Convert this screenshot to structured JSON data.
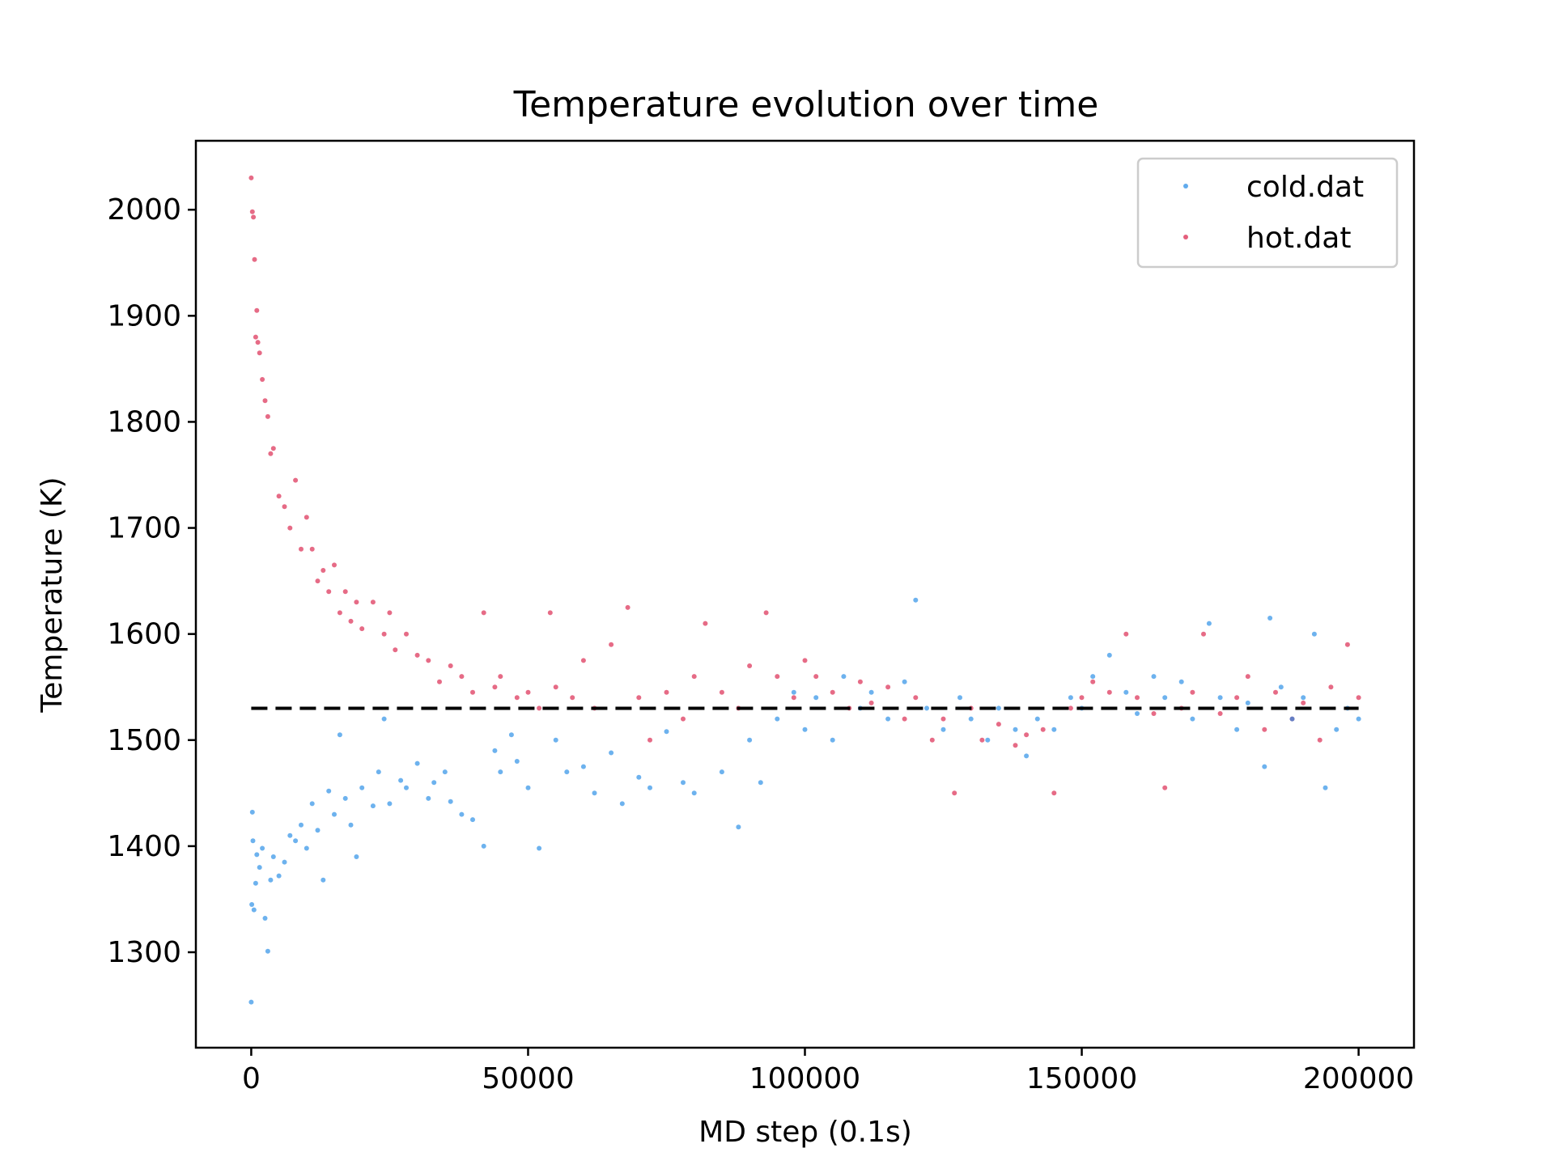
{
  "chart_data": {
    "type": "scatter",
    "title": "Temperature evolution over time",
    "xlabel": "MD step (0.1s)",
    "ylabel": "Temperature (K)",
    "xlim": [
      -10000,
      210000
    ],
    "ylim": [
      1210,
      2065
    ],
    "x_ticks": [
      0,
      50000,
      100000,
      150000,
      200000
    ],
    "y_ticks": [
      1300,
      1400,
      1500,
      1600,
      1700,
      1800,
      1900,
      2000
    ],
    "grid": false,
    "legend_position": "top-right",
    "reference_line": {
      "y": 1530,
      "x_range": [
        0,
        200000
      ],
      "style": "dashed",
      "color": "#000000"
    },
    "series": [
      {
        "name": "cold.dat",
        "color": "#1e88e5",
        "points": [
          [
            0,
            1253
          ],
          [
            100,
            1345
          ],
          [
            200,
            1432
          ],
          [
            300,
            1405
          ],
          [
            500,
            1340
          ],
          [
            800,
            1365
          ],
          [
            1000,
            1392
          ],
          [
            1500,
            1380
          ],
          [
            2000,
            1398
          ],
          [
            2500,
            1332
          ],
          [
            3000,
            1301
          ],
          [
            3500,
            1368
          ],
          [
            4000,
            1390
          ],
          [
            5000,
            1372
          ],
          [
            6000,
            1385
          ],
          [
            7000,
            1410
          ],
          [
            8000,
            1405
          ],
          [
            9000,
            1420
          ],
          [
            10000,
            1398
          ],
          [
            11000,
            1440
          ],
          [
            12000,
            1415
          ],
          [
            13000,
            1368
          ],
          [
            14000,
            1452
          ],
          [
            15000,
            1430
          ],
          [
            16000,
            1505
          ],
          [
            17000,
            1445
          ],
          [
            18000,
            1420
          ],
          [
            19000,
            1390
          ],
          [
            20000,
            1455
          ],
          [
            22000,
            1438
          ],
          [
            23000,
            1470
          ],
          [
            24000,
            1520
          ],
          [
            25000,
            1440
          ],
          [
            27000,
            1462
          ],
          [
            28000,
            1455
          ],
          [
            30000,
            1478
          ],
          [
            32000,
            1445
          ],
          [
            33000,
            1460
          ],
          [
            35000,
            1470
          ],
          [
            36000,
            1442
          ],
          [
            38000,
            1430
          ],
          [
            40000,
            1425
          ],
          [
            42000,
            1400
          ],
          [
            44000,
            1490
          ],
          [
            45000,
            1470
          ],
          [
            47000,
            1505
          ],
          [
            48000,
            1480
          ],
          [
            50000,
            1455
          ],
          [
            52000,
            1398
          ],
          [
            55000,
            1500
          ],
          [
            57000,
            1470
          ],
          [
            60000,
            1475
          ],
          [
            62000,
            1450
          ],
          [
            65000,
            1488
          ],
          [
            67000,
            1440
          ],
          [
            70000,
            1465
          ],
          [
            72000,
            1455
          ],
          [
            75000,
            1508
          ],
          [
            78000,
            1460
          ],
          [
            80000,
            1450
          ],
          [
            85000,
            1470
          ],
          [
            88000,
            1418
          ],
          [
            90000,
            1500
          ],
          [
            92000,
            1460
          ],
          [
            95000,
            1520
          ],
          [
            98000,
            1545
          ],
          [
            100000,
            1510
          ],
          [
            102000,
            1540
          ],
          [
            105000,
            1500
          ],
          [
            107000,
            1560
          ],
          [
            110000,
            1530
          ],
          [
            112000,
            1545
          ],
          [
            115000,
            1520
          ],
          [
            118000,
            1555
          ],
          [
            120000,
            1632
          ],
          [
            122000,
            1530
          ],
          [
            125000,
            1510
          ],
          [
            128000,
            1540
          ],
          [
            130000,
            1520
          ],
          [
            133000,
            1500
          ],
          [
            135000,
            1530
          ],
          [
            138000,
            1510
          ],
          [
            140000,
            1485
          ],
          [
            142000,
            1520
          ],
          [
            145000,
            1510
          ],
          [
            148000,
            1540
          ],
          [
            150000,
            1530
          ],
          [
            152000,
            1560
          ],
          [
            155000,
            1580
          ],
          [
            158000,
            1545
          ],
          [
            160000,
            1525
          ],
          [
            163000,
            1560
          ],
          [
            165000,
            1540
          ],
          [
            168000,
            1555
          ],
          [
            170000,
            1520
          ],
          [
            173000,
            1610
          ],
          [
            175000,
            1540
          ],
          [
            178000,
            1510
          ],
          [
            180000,
            1535
          ],
          [
            183000,
            1475
          ],
          [
            184000,
            1615
          ],
          [
            186000,
            1550
          ],
          [
            188000,
            1520
          ],
          [
            190000,
            1540
          ],
          [
            192000,
            1600
          ],
          [
            194000,
            1455
          ],
          [
            196000,
            1510
          ],
          [
            198000,
            1530
          ],
          [
            200000,
            1520
          ]
        ]
      },
      {
        "name": "hot.dat",
        "color": "#d81b45",
        "points": [
          [
            0,
            2030
          ],
          [
            200,
            1998
          ],
          [
            400,
            1993
          ],
          [
            600,
            1953
          ],
          [
            800,
            1880
          ],
          [
            1000,
            1905
          ],
          [
            1200,
            1875
          ],
          [
            1500,
            1865
          ],
          [
            2000,
            1840
          ],
          [
            2500,
            1820
          ],
          [
            3000,
            1805
          ],
          [
            3500,
            1770
          ],
          [
            4000,
            1775
          ],
          [
            5000,
            1730
          ],
          [
            6000,
            1720
          ],
          [
            7000,
            1700
          ],
          [
            8000,
            1745
          ],
          [
            9000,
            1680
          ],
          [
            10000,
            1710
          ],
          [
            11000,
            1680
          ],
          [
            12000,
            1650
          ],
          [
            13000,
            1660
          ],
          [
            14000,
            1640
          ],
          [
            15000,
            1665
          ],
          [
            16000,
            1620
          ],
          [
            17000,
            1640
          ],
          [
            18000,
            1612
          ],
          [
            19000,
            1630
          ],
          [
            20000,
            1605
          ],
          [
            22000,
            1630
          ],
          [
            24000,
            1600
          ],
          [
            25000,
            1620
          ],
          [
            26000,
            1585
          ],
          [
            28000,
            1600
          ],
          [
            30000,
            1580
          ],
          [
            32000,
            1575
          ],
          [
            34000,
            1555
          ],
          [
            36000,
            1570
          ],
          [
            38000,
            1560
          ],
          [
            40000,
            1545
          ],
          [
            42000,
            1620
          ],
          [
            44000,
            1550
          ],
          [
            45000,
            1560
          ],
          [
            48000,
            1540
          ],
          [
            50000,
            1545
          ],
          [
            52000,
            1530
          ],
          [
            54000,
            1620
          ],
          [
            55000,
            1550
          ],
          [
            58000,
            1540
          ],
          [
            60000,
            1575
          ],
          [
            62000,
            1530
          ],
          [
            65000,
            1590
          ],
          [
            68000,
            1625
          ],
          [
            70000,
            1540
          ],
          [
            72000,
            1500
          ],
          [
            75000,
            1545
          ],
          [
            78000,
            1520
          ],
          [
            80000,
            1560
          ],
          [
            82000,
            1610
          ],
          [
            85000,
            1545
          ],
          [
            88000,
            1530
          ],
          [
            90000,
            1570
          ],
          [
            93000,
            1620
          ],
          [
            95000,
            1560
          ],
          [
            98000,
            1540
          ],
          [
            100000,
            1575
          ],
          [
            102000,
            1560
          ],
          [
            105000,
            1545
          ],
          [
            108000,
            1530
          ],
          [
            110000,
            1555
          ],
          [
            112000,
            1535
          ],
          [
            115000,
            1550
          ],
          [
            118000,
            1520
          ],
          [
            120000,
            1540
          ],
          [
            123000,
            1500
          ],
          [
            125000,
            1520
          ],
          [
            127000,
            1450
          ],
          [
            130000,
            1530
          ],
          [
            132000,
            1500
          ],
          [
            135000,
            1515
          ],
          [
            138000,
            1495
          ],
          [
            140000,
            1505
          ],
          [
            143000,
            1510
          ],
          [
            145000,
            1450
          ],
          [
            148000,
            1530
          ],
          [
            150000,
            1540
          ],
          [
            152000,
            1555
          ],
          [
            155000,
            1545
          ],
          [
            158000,
            1600
          ],
          [
            160000,
            1540
          ],
          [
            163000,
            1525
          ],
          [
            165000,
            1455
          ],
          [
            168000,
            1530
          ],
          [
            170000,
            1545
          ],
          [
            172000,
            1600
          ],
          [
            175000,
            1525
          ],
          [
            178000,
            1540
          ],
          [
            180000,
            1560
          ],
          [
            183000,
            1510
          ],
          [
            185000,
            1545
          ],
          [
            188000,
            1520
          ],
          [
            190000,
            1535
          ],
          [
            193000,
            1500
          ],
          [
            195000,
            1550
          ],
          [
            198000,
            1590
          ],
          [
            200000,
            1540
          ]
        ]
      }
    ]
  }
}
